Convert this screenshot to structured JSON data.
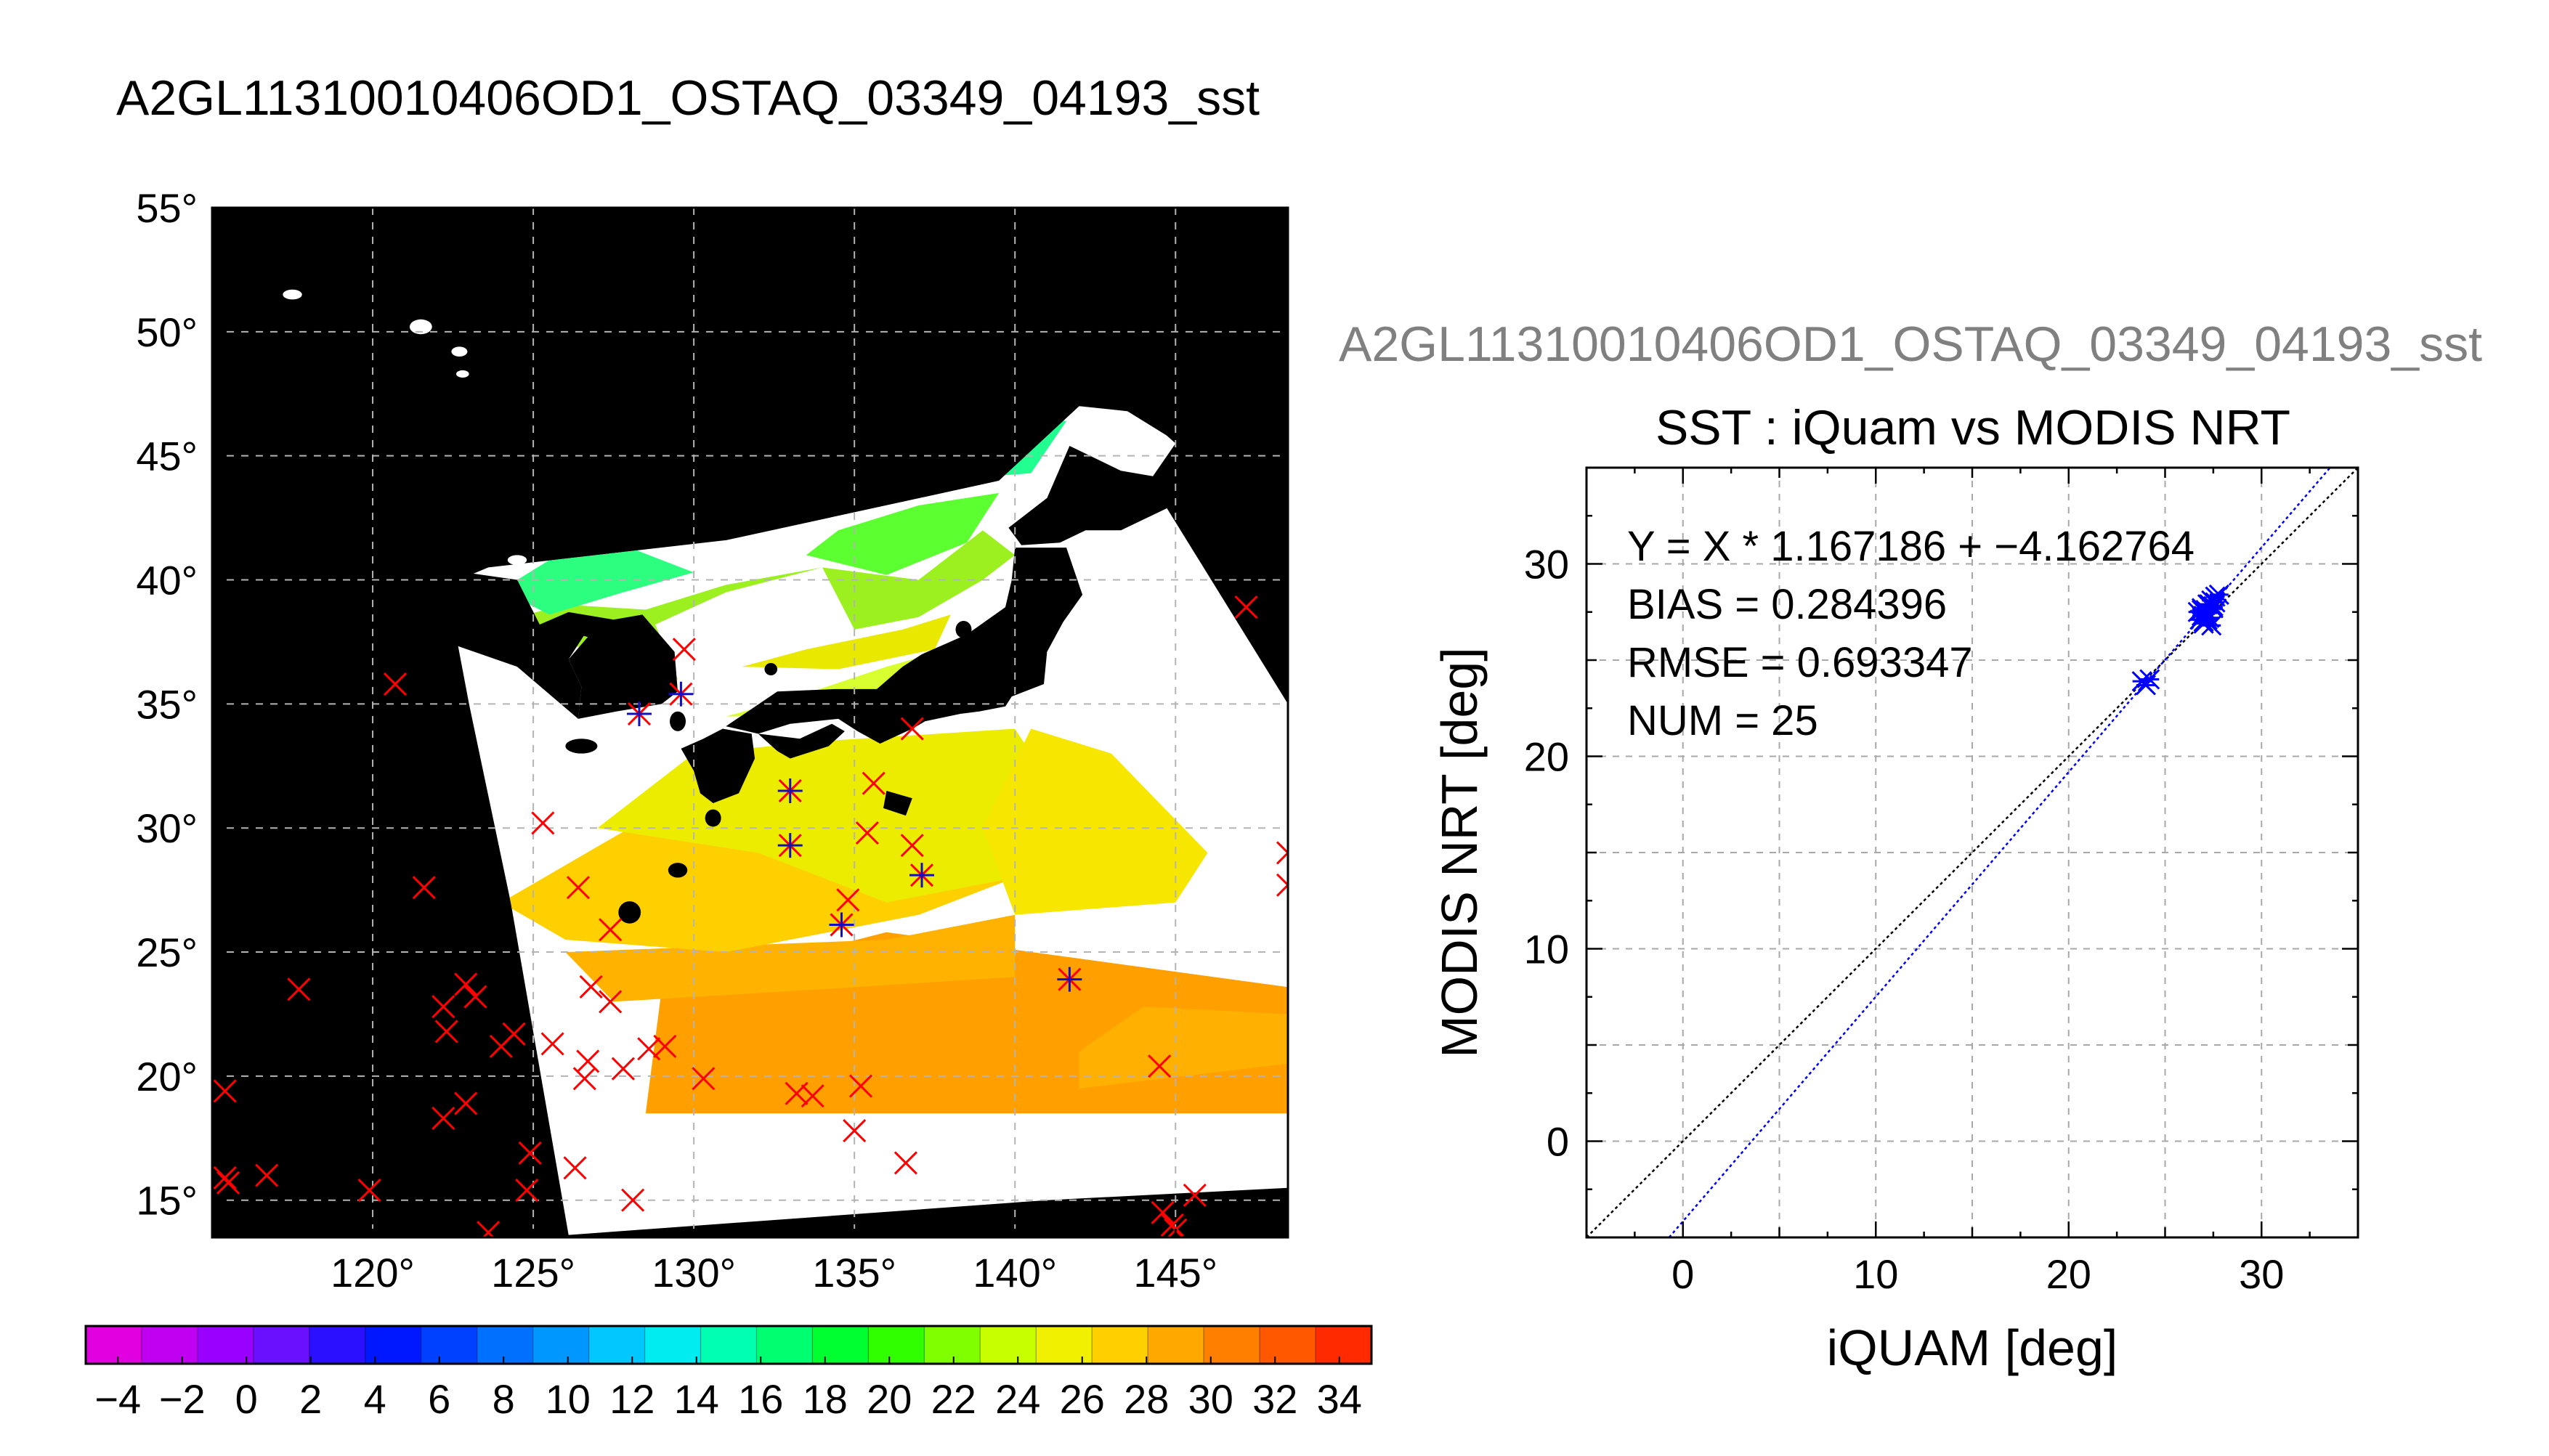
{
  "title": "A2GL11310010406OD1_OSTAQ_03349_04193_sst",
  "chart_data": [
    {
      "type": "map",
      "lon_ticks": [
        120,
        125,
        130,
        135,
        140,
        145
      ],
      "lat_ticks": [
        15,
        20,
        25,
        30,
        35,
        40,
        45,
        50,
        55
      ],
      "lon_range": [
        115,
        148.5
      ],
      "lat_range": [
        13.5,
        55
      ],
      "degree_symbol": "°",
      "grid": true,
      "colorbar": {
        "ticks": [
          -4,
          -2,
          0,
          2,
          4,
          6,
          8,
          10,
          12,
          14,
          16,
          18,
          20,
          22,
          24,
          26,
          28,
          30,
          32,
          34
        ],
        "range": [
          -5,
          35
        ],
        "colors": [
          "#e000e0",
          "#c000f0",
          "#9a00ff",
          "#6a10ff",
          "#2a10ff",
          "#0018ff",
          "#0040ff",
          "#0070ff",
          "#0098ff",
          "#00c8ff",
          "#00ecf0",
          "#00ffb0",
          "#00ff70",
          "#00ff30",
          "#30ff00",
          "#80ff00",
          "#c8ff00",
          "#f0f000",
          "#ffd000",
          "#ffa800",
          "#ff8000",
          "#ff5800",
          "#ff2a00"
        ]
      },
      "match_points": [
        {
          "lon": 128.3,
          "lat": 34.6,
          "paired": true
        },
        {
          "lon": 129.6,
          "lat": 35.4,
          "paired": true
        },
        {
          "lon": 133.0,
          "lat": 31.5,
          "paired": true
        },
        {
          "lon": 133.0,
          "lat": 29.3,
          "paired": true
        },
        {
          "lon": 134.6,
          "lat": 26.1,
          "paired": true
        },
        {
          "lon": 137.1,
          "lat": 28.1,
          "paired": true
        },
        {
          "lon": 141.7,
          "lat": 23.9,
          "paired": true
        },
        {
          "lon": 129.7,
          "lat": 37.2,
          "paired": false
        },
        {
          "lon": 135.6,
          "lat": 31.8,
          "paired": false
        },
        {
          "lon": 135.4,
          "lat": 29.8,
          "paired": false
        },
        {
          "lon": 136.8,
          "lat": 34.0,
          "paired": false
        },
        {
          "lon": 136.8,
          "lat": 29.3,
          "paired": false
        },
        {
          "lon": 134.8,
          "lat": 27.1,
          "paired": false
        },
        {
          "lon": 147.2,
          "lat": 38.9,
          "paired": false
        },
        {
          "lon": 148.5,
          "lat": 29.0,
          "paired": false
        },
        {
          "lon": 148.5,
          "lat": 27.7,
          "paired": false
        },
        {
          "lon": 120.7,
          "lat": 35.8,
          "paired": false
        },
        {
          "lon": 125.3,
          "lat": 30.2,
          "paired": false
        },
        {
          "lon": 121.6,
          "lat": 27.6,
          "paired": false
        },
        {
          "lon": 126.4,
          "lat": 27.6,
          "paired": false
        },
        {
          "lon": 127.4,
          "lat": 25.9,
          "paired": false
        },
        {
          "lon": 117.7,
          "lat": 23.5,
          "paired": false
        },
        {
          "lon": 122.2,
          "lat": 22.8,
          "paired": false
        },
        {
          "lon": 122.9,
          "lat": 23.7,
          "paired": false
        },
        {
          "lon": 123.2,
          "lat": 23.2,
          "paired": false
        },
        {
          "lon": 122.3,
          "lat": 21.8,
          "paired": false
        },
        {
          "lon": 124.4,
          "lat": 21.7,
          "paired": false
        },
        {
          "lon": 124.0,
          "lat": 21.2,
          "paired": false
        },
        {
          "lon": 125.6,
          "lat": 21.3,
          "paired": false
        },
        {
          "lon": 126.8,
          "lat": 23.6,
          "paired": false
        },
        {
          "lon": 127.4,
          "lat": 23.0,
          "paired": false
        },
        {
          "lon": 126.7,
          "lat": 20.6,
          "paired": false
        },
        {
          "lon": 127.8,
          "lat": 20.3,
          "paired": false
        },
        {
          "lon": 128.6,
          "lat": 21.1,
          "paired": false
        },
        {
          "lon": 129.1,
          "lat": 21.2,
          "paired": false
        },
        {
          "lon": 126.6,
          "lat": 19.9,
          "paired": false
        },
        {
          "lon": 122.2,
          "lat": 18.3,
          "paired": false
        },
        {
          "lon": 122.9,
          "lat": 18.9,
          "paired": false
        },
        {
          "lon": 124.9,
          "lat": 16.9,
          "paired": false
        },
        {
          "lon": 126.3,
          "lat": 16.3,
          "paired": false
        },
        {
          "lon": 124.8,
          "lat": 15.4,
          "paired": false
        },
        {
          "lon": 115.4,
          "lat": 19.4,
          "paired": false
        },
        {
          "lon": 115.4,
          "lat": 15.9,
          "paired": false
        },
        {
          "lon": 115.5,
          "lat": 15.7,
          "paired": false
        },
        {
          "lon": 116.7,
          "lat": 16.0,
          "paired": false
        },
        {
          "lon": 119.9,
          "lat": 15.4,
          "paired": false
        },
        {
          "lon": 123.6,
          "lat": 13.7,
          "paired": false
        },
        {
          "lon": 128.1,
          "lat": 15.0,
          "paired": false
        },
        {
          "lon": 130.3,
          "lat": 19.9,
          "paired": false
        },
        {
          "lon": 133.2,
          "lat": 19.3,
          "paired": false
        },
        {
          "lon": 133.7,
          "lat": 19.2,
          "paired": false
        },
        {
          "lon": 135.2,
          "lat": 19.6,
          "paired": false
        },
        {
          "lon": 135.0,
          "lat": 17.8,
          "paired": false
        },
        {
          "lon": 136.6,
          "lat": 16.5,
          "paired": false
        },
        {
          "lon": 144.5,
          "lat": 20.4,
          "paired": false
        },
        {
          "lon": 144.6,
          "lat": 14.5,
          "paired": false
        },
        {
          "lon": 144.9,
          "lat": 14.0,
          "paired": false
        },
        {
          "lon": 145.0,
          "lat": 13.8,
          "paired": false
        },
        {
          "lon": 145.6,
          "lat": 15.2,
          "paired": false
        }
      ]
    },
    {
      "type": "scatter",
      "suptitle": "A2GL11310010406OD1_OSTAQ_03349_04193_sst",
      "title": "SST : iQuam vs MODIS NRT",
      "xlabel": "iQUAM [deg]",
      "ylabel": "MODIS NRT [deg]",
      "xlim": [
        -5,
        35
      ],
      "ylim": [
        -5,
        35
      ],
      "xticks": [
        0,
        10,
        20,
        30
      ],
      "yticks": [
        0,
        10,
        20,
        30
      ],
      "grid": true,
      "annotations": [
        "Y = X * 1.167186 + −4.162764",
        "BIAS = 0.284396",
        "RMSE = 0.693347",
        "NUM = 25"
      ],
      "fit": {
        "slope": 1.167186,
        "intercept": -4.162764,
        "color": "#0000ff"
      },
      "identity_color": "#000000",
      "x": [
        23.8,
        24.2,
        24.0,
        26.9,
        27.1,
        27.0,
        27.2,
        26.8,
        27.4,
        27.0,
        27.6,
        27.2,
        27.3,
        26.9,
        27.5,
        27.8,
        27.1,
        27.4,
        26.7,
        27.0,
        27.3,
        27.6,
        27.2,
        26.9,
        27.5
      ],
      "y": [
        23.9,
        24.0,
        23.7,
        27.3,
        27.6,
        27.0,
        27.9,
        27.1,
        28.1,
        26.9,
        28.3,
        27.5,
        27.2,
        27.7,
        27.8,
        28.4,
        27.4,
        26.8,
        27.5,
        27.3,
        27.9,
        28.0,
        27.1,
        27.6,
        27.7
      ]
    }
  ]
}
